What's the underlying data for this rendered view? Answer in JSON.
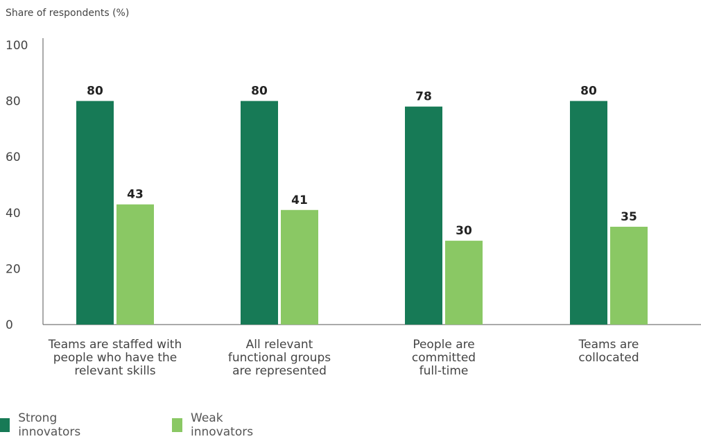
{
  "chart_data": {
    "type": "bar",
    "ylabel": "Share of respondents (%)",
    "ylim": [
      0,
      100
    ],
    "yticks": [
      0,
      20,
      40,
      60,
      80,
      100
    ],
    "categories": [
      [
        "Teams are staffed with",
        "people who have the",
        "relevant skills"
      ],
      [
        "All relevant",
        "functional groups",
        "are represented"
      ],
      [
        "People are",
        "committed",
        "full-time"
      ],
      [
        "Teams are",
        "collocated"
      ]
    ],
    "series": [
      {
        "name": "Strong innovators",
        "color": "#177a56",
        "values": [
          80,
          80,
          78,
          80
        ]
      },
      {
        "name": "Weak innovators",
        "color": "#8ac864",
        "values": [
          43,
          41,
          30,
          35
        ]
      }
    ],
    "grid": false,
    "legend_position": "bottom-left"
  }
}
